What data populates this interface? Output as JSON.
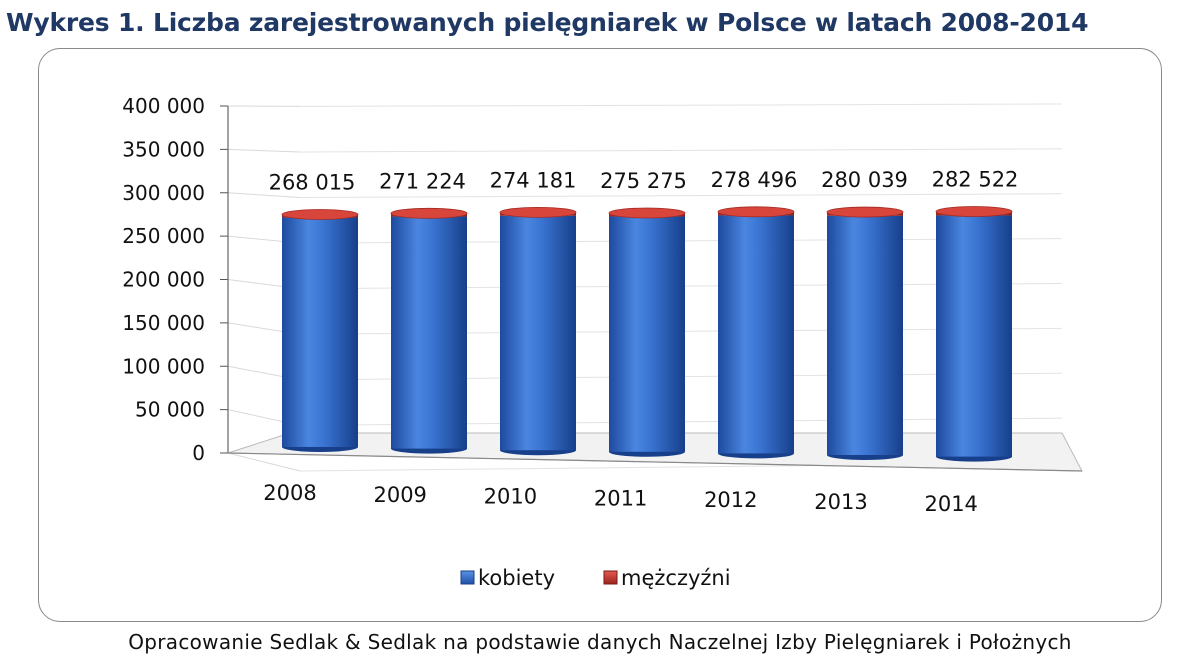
{
  "title": "Wykres 1. Liczba zarejestrowanych pielęgniarek w Polsce w latach 2008-2014",
  "source": "Opracowanie Sedlak & Sedlak na podstawie danych Naczelnej Izby Pielęgniarek i Położnych",
  "chart_data": {
    "type": "bar",
    "style": "3d-cylinder-stacked",
    "categories": [
      "2008",
      "2009",
      "2010",
      "2011",
      "2012",
      "2013",
      "2014"
    ],
    "series": [
      {
        "name": "kobiety",
        "color": "#2e6ac9",
        "values": [
          264500,
          267500,
          270300,
          271200,
          274300,
          275700,
          278000
        ]
      },
      {
        "name": "mężczyźni",
        "color": "#c0392b",
        "values": [
          3515,
          3724,
          3881,
          4075,
          4196,
          4339,
          4522
        ]
      }
    ],
    "totals": [
      268015,
      271224,
      274181,
      275275,
      278496,
      280039,
      282522
    ],
    "data_labels": [
      "268 015",
      "271 224",
      "274 181",
      "275 275",
      "278 496",
      "280 039",
      "282 522"
    ],
    "yticks": [
      "0",
      "50 000",
      "100 000",
      "150 000",
      "200 000",
      "250 000",
      "300 000",
      "350 000",
      "400 000"
    ],
    "ylim": [
      0,
      400000
    ],
    "legend_position": "bottom",
    "grid": true
  }
}
